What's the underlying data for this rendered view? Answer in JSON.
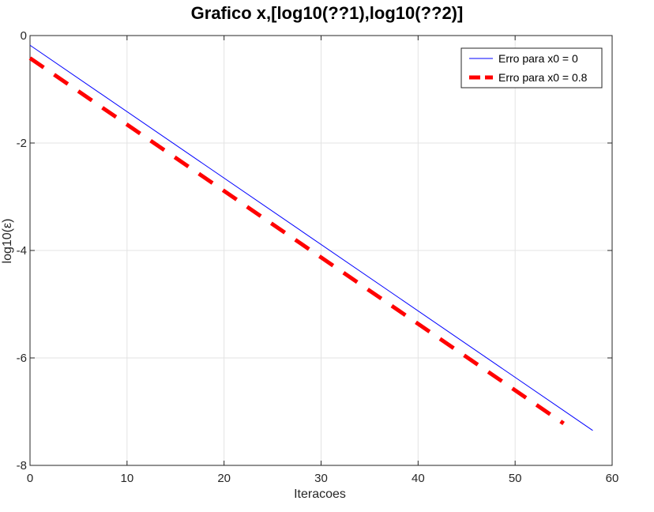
{
  "chart_data": {
    "type": "line",
    "title": "Grafico x,[log10(??1),log10(??2)]",
    "xlabel": "Iteracoes",
    "ylabel": "log10(ε)",
    "xlim": [
      0,
      60
    ],
    "ylim": [
      -8,
      0
    ],
    "xticks": [
      0,
      10,
      20,
      30,
      40,
      50,
      60
    ],
    "yticks": [
      0,
      -2,
      -4,
      -6,
      -8
    ],
    "grid": true,
    "legend_position": "top-right",
    "series": [
      {
        "name": "Erro para x0 = 0",
        "color": "#0000ff",
        "style": "solid",
        "x": [
          0,
          58
        ],
        "y": [
          -0.18,
          -7.35
        ]
      },
      {
        "name": "Erro para x0 = 0.8",
        "color": "#ff0000",
        "style": "dashed",
        "x": [
          0,
          55
        ],
        "y": [
          -0.42,
          -7.22
        ]
      }
    ]
  }
}
